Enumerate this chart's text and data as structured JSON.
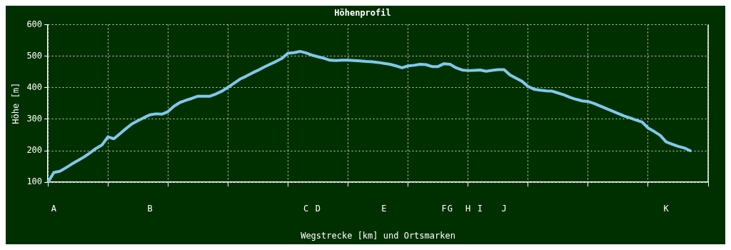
{
  "chart_data": {
    "type": "line",
    "title": "Höhenprofil",
    "xlabel": "Wegstrecke [km] und Ortsmarken",
    "ylabel": "Höhe [m]",
    "ylim": [
      100,
      600
    ],
    "yticks": [
      100,
      200,
      300,
      400,
      500,
      600
    ],
    "categories": [
      null,
      "A",
      null,
      null,
      null,
      null,
      null,
      null,
      null,
      null,
      null,
      null,
      null,
      null,
      null,
      null,
      null,
      "B",
      null,
      null,
      null,
      null,
      null,
      null,
      null,
      null,
      null,
      null,
      null,
      null,
      null,
      null,
      null,
      null,
      null,
      null,
      null,
      null,
      null,
      null,
      null,
      null,
      null,
      "C",
      null,
      "D",
      null,
      null,
      null,
      null,
      null,
      null,
      null,
      null,
      null,
      null,
      "E",
      null,
      null,
      null,
      null,
      null,
      null,
      null,
      null,
      null,
      "F",
      "G",
      null,
      null,
      "H",
      null,
      "I",
      null,
      null,
      null,
      "J",
      null,
      null,
      null,
      null,
      null,
      null,
      null,
      null,
      null,
      null,
      null,
      null,
      null,
      null,
      null,
      null,
      null,
      null,
      null,
      null,
      null,
      null,
      null,
      null,
      null,
      null,
      "K",
      null,
      null,
      null,
      null,
      null,
      null,
      null
    ],
    "grid": true,
    "legend": false,
    "marker": "none",
    "line_style": "solid",
    "series": [
      {
        "color": "#80c8ec",
        "values": [
          100,
          131,
          135,
          146,
          158,
          169,
          180,
          193,
          207,
          218,
          244,
          238,
          254,
          270,
          285,
          295,
          305,
          314,
          317,
          316,
          324,
          341,
          353,
          360,
          366,
          373,
          373,
          373,
          380,
          389,
          401,
          414,
          427,
          436,
          446,
          455,
          465,
          474,
          483,
          493,
          509,
          511,
          515,
          510,
          503,
          498,
          493,
          487,
          486,
          487,
          487,
          486,
          485,
          483,
          482,
          480,
          477,
          474,
          469,
          463,
          469,
          471,
          474,
          473,
          467,
          467,
          476,
          474,
          463,
          456,
          454,
          455,
          456,
          452,
          455,
          457,
          457,
          440,
          430,
          420,
          404,
          395,
          392,
          390,
          389,
          383,
          377,
          369,
          363,
          358,
          356,
          350,
          342,
          334,
          326,
          318,
          310,
          304,
          297,
          291,
          272,
          261,
          249,
          228,
          221,
          214,
          209,
          200,
          null,
          null,
          null
        ]
      }
    ]
  }
}
